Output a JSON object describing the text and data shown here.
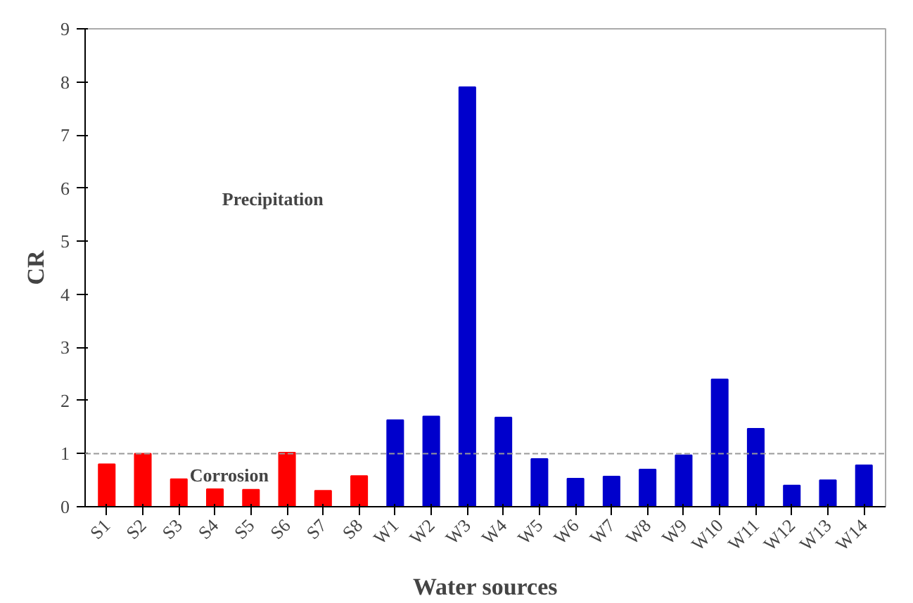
{
  "chart_data": {
    "type": "bar",
    "xlabel": "Water sources",
    "ylabel": "CR",
    "categories": [
      "S1",
      "S2",
      "S3",
      "S4",
      "S5",
      "S6",
      "S7",
      "S8",
      "W1",
      "W2",
      "W3",
      "W4",
      "W5",
      "W6",
      "W7",
      "W8",
      "W9",
      "W10",
      "W11",
      "W12",
      "W13",
      "W14"
    ],
    "values": [
      0.8,
      1.0,
      0.52,
      0.33,
      0.32,
      1.02,
      0.3,
      0.58,
      1.63,
      1.7,
      7.9,
      1.68,
      0.9,
      0.53,
      0.57,
      0.7,
      0.97,
      2.4,
      1.47,
      0.4,
      0.5,
      0.78
    ],
    "colors": [
      "#ff0000",
      "#ff0000",
      "#ff0000",
      "#ff0000",
      "#ff0000",
      "#ff0000",
      "#ff0000",
      "#ff0000",
      "#0000cc",
      "#0000cc",
      "#0000cc",
      "#0000cc",
      "#0000cc",
      "#0000cc",
      "#0000cc",
      "#0000cc",
      "#0000cc",
      "#0000cc",
      "#0000cc",
      "#0000cc",
      "#0000cc",
      "#0000cc"
    ],
    "ylim": [
      0,
      9
    ],
    "yticks": [
      0,
      1,
      2,
      3,
      4,
      5,
      6,
      7,
      8,
      9
    ],
    "grid": false,
    "ref_lines": [
      {
        "axis": "y",
        "value": 1,
        "color": "#999999",
        "line_style": "dashed"
      }
    ],
    "annotations": [
      "Precipitation",
      "Corrosion"
    ]
  }
}
